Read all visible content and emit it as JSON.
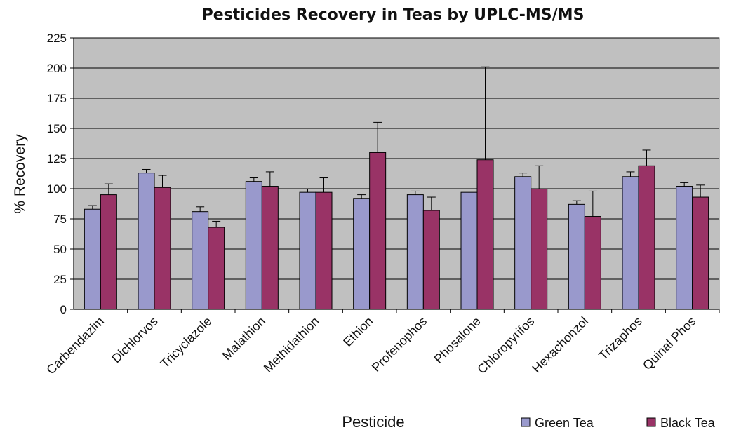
{
  "chart_data": {
    "type": "bar",
    "title": "Pesticides Recovery in Teas by UPLC-MS/MS",
    "xlabel": "Pesticide",
    "ylabel": "% Recovery",
    "ylim": [
      0,
      225
    ],
    "yticks": [
      0,
      25,
      50,
      75,
      100,
      125,
      150,
      175,
      200,
      225
    ],
    "grid": true,
    "legend_position": "bottom-right",
    "categories": [
      "Carbendazim",
      "Dichlorvos",
      "Tricyclazole",
      "Malathion",
      "Methidathion",
      "Ethion",
      "Profenophos",
      "Phosalone",
      "Chloropyrifos",
      "Hexachonzol",
      "Trizaphos",
      "Quinal Phos"
    ],
    "series": [
      {
        "name": "Green Tea",
        "color": "#9999cc",
        "values": [
          83,
          113,
          81,
          106,
          97,
          92,
          95,
          97,
          110,
          87,
          110,
          102
        ],
        "error": [
          3,
          3,
          4,
          3,
          3,
          3,
          3,
          3,
          3,
          3,
          4,
          3
        ]
      },
      {
        "name": "Black Tea",
        "color": "#993366",
        "values": [
          95,
          101,
          68,
          102,
          97,
          130,
          82,
          124,
          100,
          77,
          119,
          93
        ],
        "error": [
          9,
          10,
          5,
          12,
          12,
          25,
          11,
          77,
          19,
          21,
          13,
          10
        ]
      }
    ],
    "colors": {
      "plot_background": "#c0c0c0",
      "gridline": "#000000"
    }
  }
}
